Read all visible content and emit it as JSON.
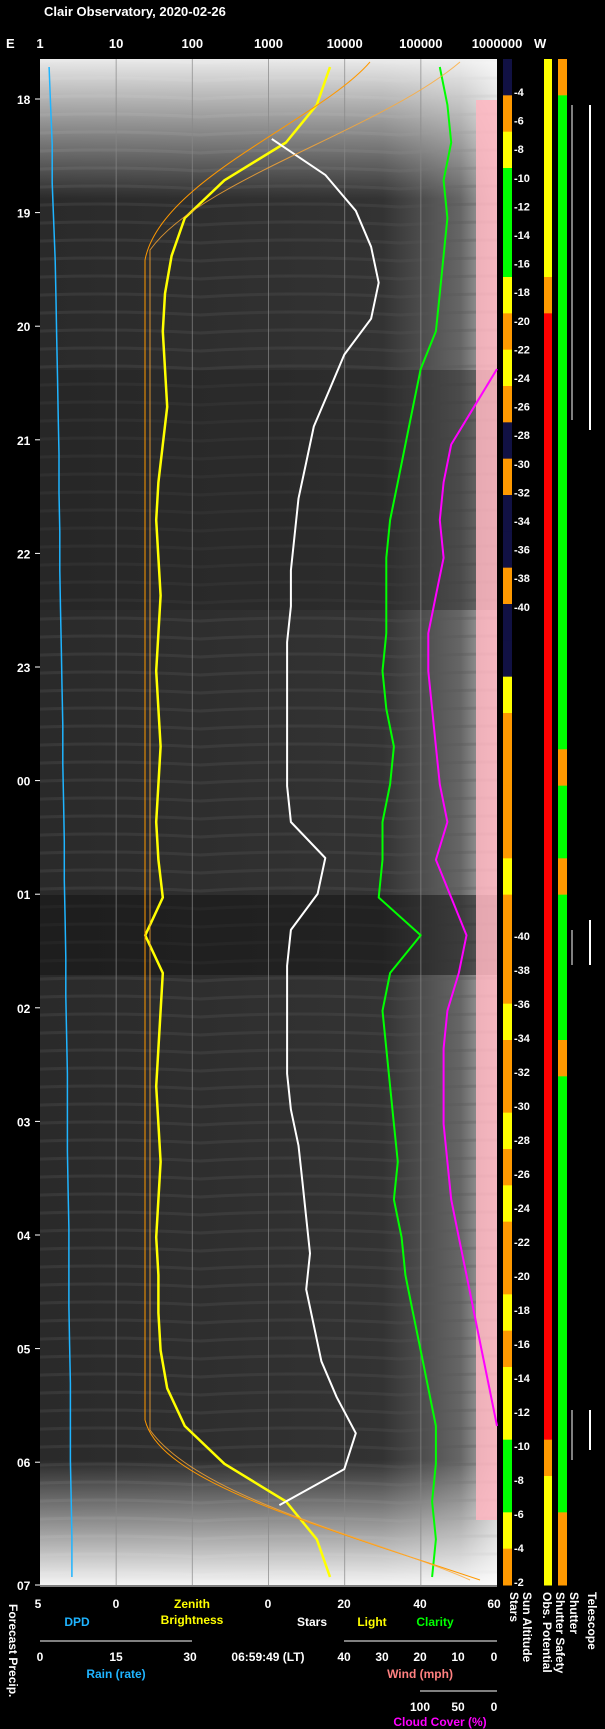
{
  "chart_data": {
    "type": "line",
    "title": "Clair Observatory, 2020-02-26",
    "y_axis": {
      "ticks": [
        "18",
        "19",
        "20",
        "21",
        "22",
        "23",
        "00",
        "01",
        "02",
        "03",
        "04",
        "05",
        "06",
        "07"
      ]
    },
    "top_axis": {
      "left_label": "E",
      "right_label": "W",
      "log_ticks": [
        "1",
        "10",
        "100",
        "1000",
        "10000",
        "100000",
        "1000000"
      ]
    },
    "sun_altitude_scale": {
      "evening": [
        "-4",
        "-6",
        "-8",
        "-10",
        "-12",
        "-14",
        "-16",
        "-18",
        "-20",
        "-22",
        "-24",
        "-26",
        "-28",
        "-30",
        "-32",
        "-34",
        "-36",
        "-38",
        "-40"
      ],
      "morning": [
        "-40",
        "-38",
        "-36",
        "-34",
        "-32",
        "-30",
        "-28",
        "-26",
        "-24",
        "-22",
        "-20",
        "-18",
        "-16",
        "-14",
        "-12",
        "-10",
        "-8",
        "-6",
        "-4",
        "-2"
      ]
    },
    "bottom_axes": {
      "dpd": {
        "ticks": [
          "5",
          "0"
        ],
        "label": "DPD",
        "color": "#1fb4ff"
      },
      "zenith": {
        "label_line1": "Zenith",
        "label_line2": "Brightness",
        "color": "#ffff00"
      },
      "counts": {
        "ticks": [
          "0",
          "20",
          "40",
          "60"
        ],
        "stars_label": "Stars",
        "light_label": "Light",
        "clarity_label": "Clarity"
      },
      "rain": {
        "ticks": [
          "0",
          "15",
          "30"
        ],
        "label": "Rain (rate)",
        "color": "#1fb4ff"
      },
      "time": "06:59:49 (LT)",
      "wind": {
        "ticks": [
          "40",
          "30",
          "20",
          "10",
          "0"
        ],
        "label": "Wind (mph)",
        "color": "#ff8080"
      },
      "cloud": {
        "ticks": [
          "100",
          "50",
          "0"
        ],
        "label": "Cloud Cover (%)",
        "color": "#ff00ff"
      },
      "forecast_label": "Forecast Precip."
    },
    "side_labels": [
      "Stars",
      "Sun Altitude",
      "Obs. Potential",
      "Shutter Safety",
      "Shutter",
      "Telescope"
    ],
    "series": [
      {
        "name": "DPD",
        "color": "#1fb4ff",
        "values": [
          4.4,
          4.3,
          4.2,
          4.2,
          4.1,
          4.0,
          3.95,
          3.9,
          3.85,
          3.8,
          3.75,
          3.75,
          3.7,
          3.7,
          3.65,
          3.6,
          3.55,
          3.5,
          3.5,
          3.45,
          3.4,
          3.4,
          3.35,
          3.3,
          3.3,
          3.25,
          3.2,
          3.2,
          3.2,
          3.15,
          3.1,
          3.1,
          3.1,
          3.05,
          3.0,
          3.0,
          3.0,
          2.95,
          2.9,
          2.9
        ]
      },
      {
        "name": "Zenith Brightness",
        "color": "#ffff00",
        "values": [
          0.0,
          0.3,
          1.0,
          2.4,
          3.3,
          3.6,
          3.75,
          3.8,
          3.75,
          3.7,
          3.8,
          3.9,
          3.95,
          3.9,
          3.85,
          3.9,
          3.95,
          3.9,
          3.85,
          3.9,
          3.95,
          3.9,
          3.8,
          4.2,
          3.8,
          3.85,
          3.9,
          3.95,
          3.9,
          3.85,
          3.9,
          3.95,
          3.9,
          3.9,
          3.85,
          3.7,
          3.3,
          2.4,
          1.0,
          0.3,
          0.0
        ]
      },
      {
        "name": "Stars",
        "color": "#ffffff",
        "values": [
          null,
          null,
          1,
          15,
          23,
          27,
          29,
          27,
          20,
          16,
          12,
          10,
          8,
          7,
          6,
          6,
          5,
          5,
          5,
          5,
          5,
          6,
          15,
          13,
          6,
          5,
          5,
          5,
          5,
          6,
          8,
          9,
          10,
          11,
          10,
          12,
          14,
          18,
          23,
          20,
          3,
          null,
          null
        ]
      },
      {
        "name": "Clarity",
        "color": "#00ff00",
        "values": [
          45,
          47,
          48,
          46,
          47,
          46,
          45,
          44,
          40,
          38,
          36,
          34,
          32,
          31,
          31,
          31,
          30,
          31,
          33,
          32,
          30,
          30,
          29,
          40,
          32,
          30,
          31,
          32,
          33,
          34,
          33,
          35,
          36,
          38,
          40,
          42,
          44,
          44,
          43,
          44,
          43
        ]
      },
      {
        "name": "Cloud Cover",
        "color": "#ff00ff",
        "values": [
          null,
          null,
          null,
          null,
          null,
          null,
          null,
          null,
          60,
          54,
          48,
          46,
          45,
          46,
          44,
          42,
          42,
          43,
          44,
          45,
          47,
          44,
          48,
          52,
          50,
          47,
          46,
          46,
          46,
          47,
          48,
          50,
          52,
          54,
          56,
          58,
          60,
          null,
          null,
          null,
          null
        ]
      }
    ],
    "bands": {
      "stars": [
        "#111144",
        "#ff9900",
        "#ffff00",
        "#00ff00",
        "#00ff00",
        "#00ff00",
        "#ffff00",
        "#ff9900",
        "#ffff00",
        "#ff9900",
        "#111144",
        "#ff9900",
        "#111144",
        "#111144",
        "#ff9900",
        "#111144",
        "#111144",
        "#ffff00",
        "#ff9900",
        "#ff9900",
        "#ff9900",
        "#ff9900",
        "#ffff00",
        "#ff9900",
        "#ff9900",
        "#ff9900",
        "#ffff00",
        "#ff9900",
        "#ff9900",
        "#ffff00",
        "#ff9900",
        "#ffff00",
        "#ff9900",
        "#ff9900",
        "#ffff00",
        "#ff9900",
        "#ffff00",
        "#ffff00",
        "#00ff00",
        "#00ff00",
        "#ffff00",
        "#ff9900"
      ],
      "obs_potential": [
        "#ffff00",
        "#ffff00",
        "#ffff00",
        "#ffff00",
        "#ffff00",
        "#ffff00",
        "#ff9900",
        "#ff0000",
        "#ff0000",
        "#ff0000",
        "#ff0000",
        "#ff0000",
        "#ff0000",
        "#ff0000",
        "#ff0000",
        "#ff0000",
        "#ff0000",
        "#ff0000",
        "#ff0000",
        "#ff0000",
        "#ff0000",
        "#ff0000",
        "#ff0000",
        "#ff0000",
        "#ff0000",
        "#ff0000",
        "#ff0000",
        "#ff0000",
        "#ff0000",
        "#ff0000",
        "#ff0000",
        "#ff0000",
        "#ff0000",
        "#ff0000",
        "#ff0000",
        "#ff0000",
        "#ff0000",
        "#ff0000",
        "#ff9900",
        "#ffff00",
        "#ffff00",
        "#ffff00"
      ],
      "shutter_safety": [
        "#ff9900",
        "#00ff00",
        "#00ff00",
        "#00ff00",
        "#00ff00",
        "#00ff00",
        "#00ff00",
        "#00ff00",
        "#00ff00",
        "#00ff00",
        "#00ff00",
        "#00ff00",
        "#00ff00",
        "#00ff00",
        "#00ff00",
        "#00ff00",
        "#00ff00",
        "#00ff00",
        "#00ff00",
        "#ff9900",
        "#00ff00",
        "#00ff00",
        "#ff9900",
        "#00ff00",
        "#00ff00",
        "#00ff00",
        "#00ff00",
        "#ff9900",
        "#00ff00",
        "#00ff00",
        "#00ff00",
        "#00ff00",
        "#00ff00",
        "#00ff00",
        "#00ff00",
        "#00ff00",
        "#00ff00",
        "#00ff00",
        "#00ff00",
        "#00ff00",
        "#ff9900",
        "#ff9900"
      ]
    }
  }
}
